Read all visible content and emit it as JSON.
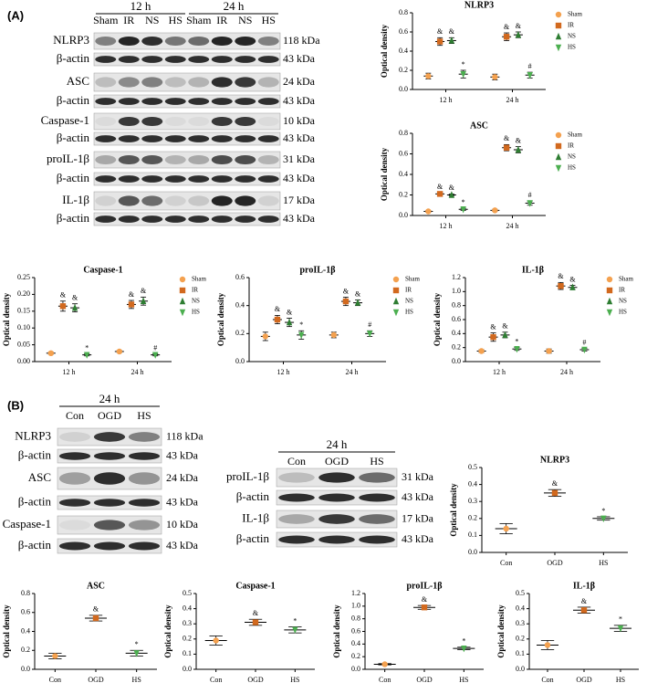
{
  "panels": [
    "(A)",
    "(B)"
  ],
  "blots": [
    {
      "times": [
        "12 h",
        "24 h"
      ],
      "lanes": [
        "Sham",
        "IR",
        "NS",
        "HS",
        "Sham",
        "IR",
        "NS",
        "HS"
      ],
      "rows": [
        {
          "label": "NLRP3",
          "kda": "118 kDa"
        },
        {
          "label": "β-actin",
          "kda": "43 kDa"
        },
        {
          "label": "ASC",
          "kda": "24 kDa"
        },
        {
          "label": "β-actin",
          "kda": "43 kDa"
        },
        {
          "label": "Caspase-1",
          "kda": "10 kDa"
        },
        {
          "label": "β-actin",
          "kda": "43 kDa"
        },
        {
          "label": "proIL-1β",
          "kda": "31 kDa"
        },
        {
          "label": "β-actin",
          "kda": "43 kDa"
        },
        {
          "label": "IL-1β",
          "kda": "17 kDa"
        },
        {
          "label": "β-actin",
          "kda": "43 kDa"
        }
      ]
    },
    {
      "times": [
        "24 h"
      ],
      "lanes": [
        "Con",
        "OGD",
        "HS"
      ],
      "rows": [
        {
          "label": "NLRP3",
          "kda": "118 kDa"
        },
        {
          "label": "β-actin",
          "kda": "43 kDa"
        },
        {
          "label": "ASC",
          "kda": "24 kDa"
        },
        {
          "label": "β-actin",
          "kda": "43 kDa"
        },
        {
          "label": "Caspase-1",
          "kda": "10 kDa"
        },
        {
          "label": "β-actin",
          "kda": "43 kDa"
        }
      ]
    },
    {
      "times": [
        "24 h"
      ],
      "lanes": [
        "Con",
        "OGD",
        "HS"
      ],
      "rows": [
        {
          "label": "proIL-1β",
          "kda": "31 kDa"
        },
        {
          "label": "β-actin",
          "kda": "43 kDa"
        },
        {
          "label": "IL-1β",
          "kda": "17 kDa"
        },
        {
          "label": "β-actin",
          "kda": "43 kDa"
        }
      ]
    }
  ],
  "chart_data": [
    {
      "type": "grouped-dot",
      "title": "NLRP3",
      "ylabel": "Optical density",
      "categories": [
        "12 h",
        "24 h"
      ],
      "ylim": [
        0,
        0.8
      ],
      "yticks": [
        {
          "value": 0,
          "label": "0.0"
        },
        0.2,
        0.4,
        0.6,
        0.8
      ],
      "series": [
        {
          "name": "Sham",
          "color": "#f4a14f",
          "values": [
            0.14,
            0.13
          ],
          "errors": [
            0.03,
            0.03
          ],
          "labels": [
            null,
            null
          ]
        },
        {
          "name": "IR",
          "color": "#d2691e",
          "values": [
            0.5,
            0.55
          ],
          "errors": [
            0.04,
            0.04
          ],
          "labels": [
            "&",
            "&"
          ]
        },
        {
          "name": "NS",
          "color": "#2e7d32",
          "values": [
            0.51,
            0.57
          ],
          "errors": [
            0.03,
            0.03
          ],
          "labels": [
            "&",
            "&"
          ]
        },
        {
          "name": "HS",
          "color": "#4caf50",
          "values": [
            0.16,
            0.15
          ],
          "errors": [
            0.04,
            0.03
          ],
          "labels": [
            "*",
            "#"
          ]
        }
      ]
    },
    {
      "type": "grouped-dot",
      "title": "ASC",
      "ylabel": "Optical density",
      "categories": [
        "12 h",
        "24 h"
      ],
      "ylim": [
        0,
        0.8
      ],
      "yticks": [
        {
          "value": 0,
          "label": "0.0"
        },
        0.2,
        0.4,
        0.6,
        0.8
      ],
      "series": [
        {
          "name": "Sham",
          "color": "#f4a14f",
          "values": [
            0.04,
            0.05
          ],
          "errors": [
            0.01,
            0.01
          ],
          "labels": [
            null,
            null
          ]
        },
        {
          "name": "IR",
          "color": "#d2691e",
          "values": [
            0.21,
            0.66
          ],
          "errors": [
            0.01,
            0.03
          ],
          "labels": [
            "&",
            "&"
          ]
        },
        {
          "name": "NS",
          "color": "#2e7d32",
          "values": [
            0.2,
            0.64
          ],
          "errors": [
            0.01,
            0.03
          ],
          "labels": [
            "&",
            "&"
          ]
        },
        {
          "name": "HS",
          "color": "#4caf50",
          "values": [
            0.06,
            0.12
          ],
          "errors": [
            0.01,
            0.02
          ],
          "labels": [
            "*",
            "#"
          ]
        }
      ]
    },
    {
      "type": "grouped-dot",
      "title": "Caspase-1",
      "ylabel": "Optical density",
      "categories": [
        "12 h",
        "24 h"
      ],
      "ylim": [
        0,
        0.25
      ],
      "yticks": [
        {
          "value": 0,
          "label": "0.00"
        },
        {
          "value": 0.05,
          "label": "0.05"
        },
        {
          "value": 0.1,
          "label": "0.10"
        },
        {
          "value": 0.15,
          "label": "0.15"
        },
        {
          "value": 0.2,
          "label": "0.20"
        },
        {
          "value": 0.25,
          "label": "0.25"
        }
      ],
      "series": [
        {
          "name": "Sham",
          "color": "#f4a14f",
          "values": [
            0.025,
            0.03
          ],
          "errors": [
            0.003,
            0.003
          ],
          "labels": [
            null,
            null
          ]
        },
        {
          "name": "IR",
          "color": "#d2691e",
          "values": [
            0.165,
            0.17
          ],
          "errors": [
            0.015,
            0.012
          ],
          "labels": [
            "&",
            "&"
          ]
        },
        {
          "name": "NS",
          "color": "#2e7d32",
          "values": [
            0.16,
            0.18
          ],
          "errors": [
            0.012,
            0.012
          ],
          "labels": [
            "&",
            "&"
          ]
        },
        {
          "name": "HS",
          "color": "#4caf50",
          "values": [
            0.02,
            0.02
          ],
          "errors": [
            0.003,
            0.003
          ],
          "labels": [
            "*",
            "#"
          ]
        }
      ]
    },
    {
      "type": "grouped-dot",
      "title": "proIL-1β",
      "ylabel": "Optical density",
      "categories": [
        "12 h",
        "24 h"
      ],
      "ylim": [
        0,
        0.6
      ],
      "yticks": [
        {
          "value": 0,
          "label": "0.0"
        },
        0.2,
        0.4,
        0.6
      ],
      "series": [
        {
          "name": "Sham",
          "color": "#f4a14f",
          "values": [
            0.18,
            0.19
          ],
          "errors": [
            0.03,
            0.02
          ],
          "labels": [
            null,
            null
          ]
        },
        {
          "name": "IR",
          "color": "#d2691e",
          "values": [
            0.3,
            0.43
          ],
          "errors": [
            0.03,
            0.03
          ],
          "labels": [
            "&",
            "&"
          ]
        },
        {
          "name": "NS",
          "color": "#2e7d32",
          "values": [
            0.28,
            0.42
          ],
          "errors": [
            0.03,
            0.02
          ],
          "labels": [
            "&",
            "&"
          ]
        },
        {
          "name": "HS",
          "color": "#4caf50",
          "values": [
            0.19,
            0.2
          ],
          "errors": [
            0.03,
            0.02
          ],
          "labels": [
            "*",
            "#"
          ]
        }
      ]
    },
    {
      "type": "grouped-dot",
      "title": "IL-1β",
      "ylabel": "Optical density",
      "categories": [
        "12 h",
        "24 h"
      ],
      "ylim": [
        0,
        1.2
      ],
      "yticks": [
        {
          "value": 0,
          "label": "0.0"
        },
        0.2,
        0.4,
        0.6,
        0.8,
        {
          "value": 1,
          "label": "1.0"
        },
        1.2
      ],
      "series": [
        {
          "name": "Sham",
          "color": "#f4a14f",
          "values": [
            0.15,
            0.15
          ],
          "errors": [
            0.02,
            0.03
          ],
          "labels": [
            null,
            null
          ]
        },
        {
          "name": "IR",
          "color": "#d2691e",
          "values": [
            0.35,
            1.08
          ],
          "errors": [
            0.06,
            0.05
          ],
          "labels": [
            "&",
            "&"
          ]
        },
        {
          "name": "NS",
          "color": "#2e7d32",
          "values": [
            0.38,
            1.06
          ],
          "errors": [
            0.04,
            0.03
          ],
          "labels": [
            "&",
            "&"
          ]
        },
        {
          "name": "HS",
          "color": "#4caf50",
          "values": [
            0.18,
            0.17
          ],
          "errors": [
            0.02,
            0.02
          ],
          "labels": [
            "*",
            "#"
          ]
        }
      ]
    },
    {
      "type": "dot",
      "title": "NLRP3",
      "ylabel": "Optical density",
      "categories": [
        "Con",
        "OGD",
        "HS"
      ],
      "ylim": [
        0,
        0.5
      ],
      "yticks": [
        {
          "value": 0,
          "label": "0.0"
        },
        0.1,
        0.2,
        0.3,
        0.4,
        0.5
      ],
      "values": [
        0.14,
        0.35,
        0.2
      ],
      "errors": [
        0.03,
        0.02,
        0.01
      ],
      "colors": [
        "#f4a14f",
        "#d2691e",
        "#4caf50"
      ],
      "labels": [
        null,
        "&",
        "*"
      ]
    },
    {
      "type": "dot",
      "title": "ASC",
      "ylabel": "Optical density",
      "categories": [
        "Con",
        "OGD",
        "HS"
      ],
      "ylim": [
        0,
        0.8
      ],
      "yticks": [
        {
          "value": 0,
          "label": "0.0"
        },
        0.2,
        0.4,
        0.6,
        0.8
      ],
      "values": [
        0.14,
        0.54,
        0.17
      ],
      "errors": [
        0.03,
        0.03,
        0.03
      ],
      "colors": [
        "#f4a14f",
        "#d2691e",
        "#4caf50"
      ],
      "labels": [
        null,
        "&",
        "*"
      ]
    },
    {
      "type": "dot",
      "title": "Caspase-1",
      "ylabel": "Optical density",
      "categories": [
        "Con",
        "OGD",
        "HS"
      ],
      "ylim": [
        0,
        0.5
      ],
      "yticks": [
        {
          "value": 0,
          "label": "0.0"
        },
        0.1,
        0.2,
        0.3,
        0.4,
        0.5
      ],
      "values": [
        0.19,
        0.31,
        0.26
      ],
      "errors": [
        0.03,
        0.02,
        0.02
      ],
      "colors": [
        "#f4a14f",
        "#d2691e",
        "#4caf50"
      ],
      "labels": [
        null,
        "&",
        "*"
      ]
    },
    {
      "type": "dot",
      "title": "proIL-1β",
      "ylabel": "Optical density",
      "categories": [
        "Con",
        "OGD",
        "HS"
      ],
      "ylim": [
        0,
        1.2
      ],
      "yticks": [
        {
          "value": 0,
          "label": "0.0"
        },
        0.2,
        0.4,
        0.6,
        0.8,
        {
          "value": 1,
          "label": "1.0"
        },
        1.2
      ],
      "values": [
        0.08,
        0.98,
        0.33
      ],
      "errors": [
        0.01,
        0.03,
        0.02
      ],
      "colors": [
        "#f4a14f",
        "#d2691e",
        "#4caf50"
      ],
      "labels": [
        null,
        "&",
        "*"
      ]
    },
    {
      "type": "dot",
      "title": "IL-1β",
      "ylabel": "Optical density",
      "categories": [
        "Con",
        "OGD",
        "HS"
      ],
      "ylim": [
        0,
        0.5
      ],
      "yticks": [
        {
          "value": 0,
          "label": "0.0"
        },
        0.1,
        0.2,
        0.3,
        0.4,
        0.5
      ],
      "values": [
        0.16,
        0.39,
        0.27
      ],
      "errors": [
        0.03,
        0.02,
        0.02
      ],
      "colors": [
        "#f4a14f",
        "#d2691e",
        "#4caf50"
      ],
      "labels": [
        null,
        "&",
        "*"
      ]
    }
  ]
}
